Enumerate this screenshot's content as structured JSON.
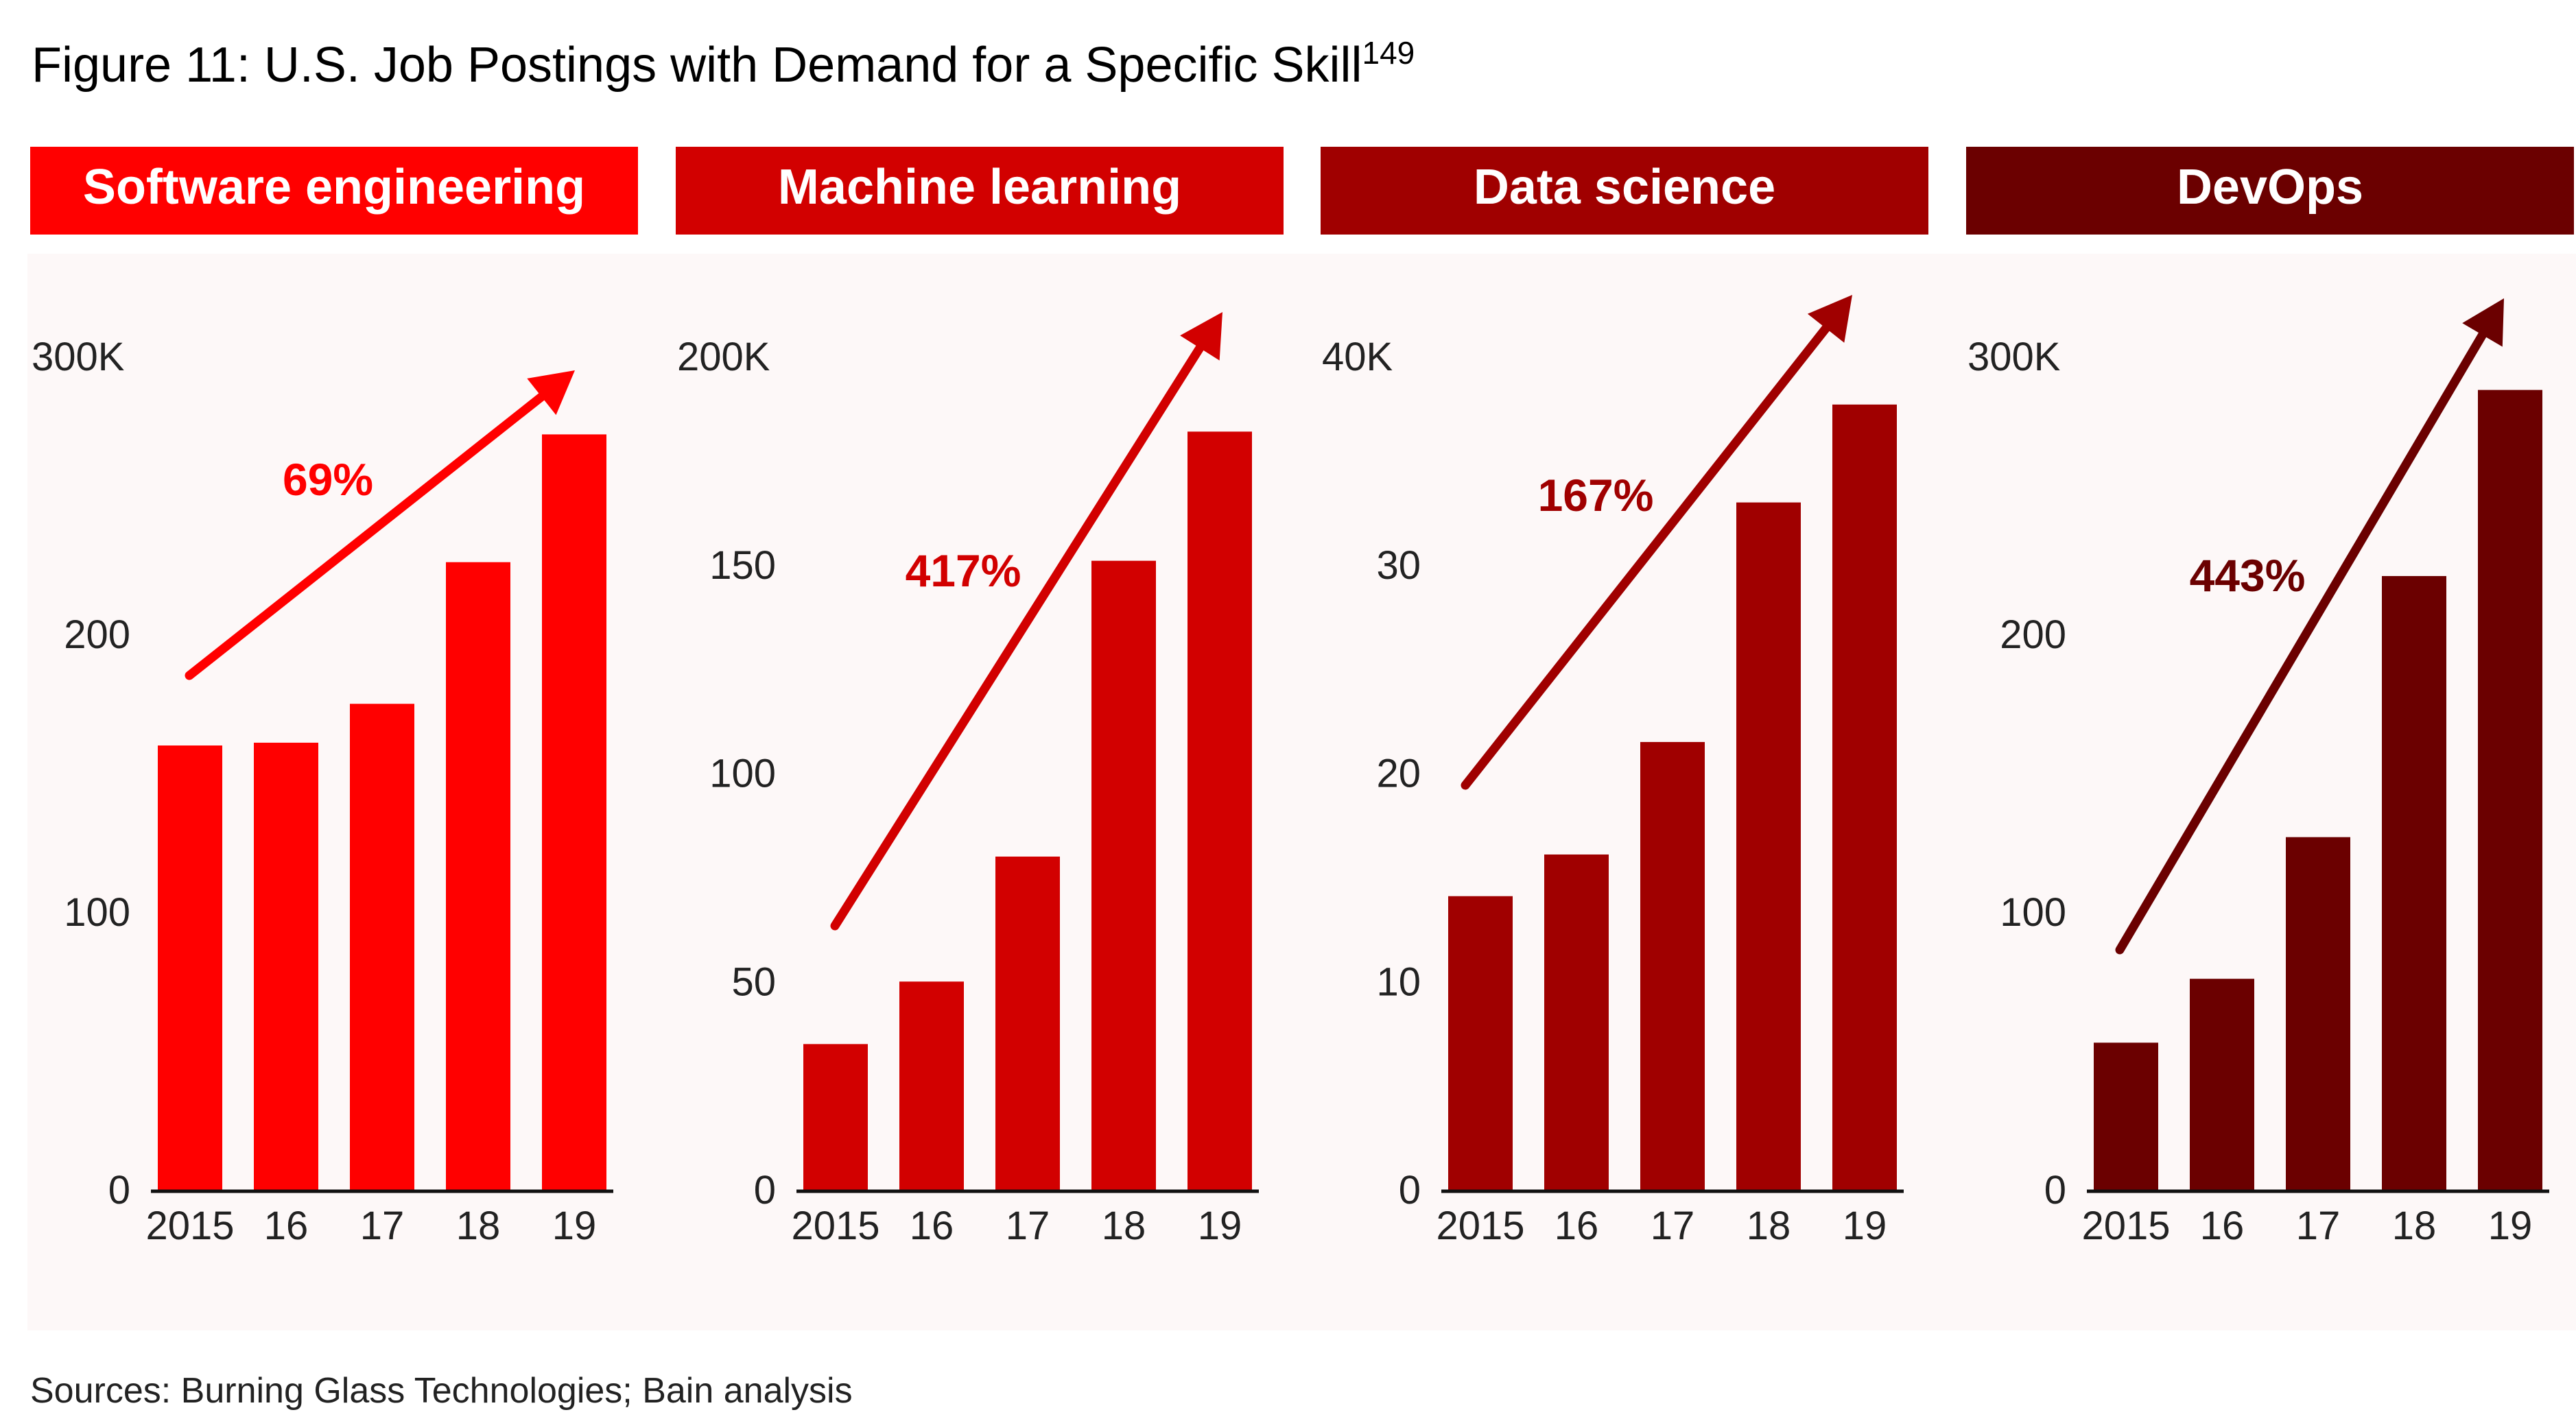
{
  "title": {
    "text": "Figure 11: U.S. Job Postings with Demand for a Specific Skill",
    "footnote": "149"
  },
  "sources": "Sources: Burning Glass Technologies; Bain analysis",
  "chart_data": [
    {
      "type": "bar",
      "title": "Software engineering",
      "color": "#ff0000",
      "categories": [
        "2015",
        "16",
        "17",
        "18",
        "19"
      ],
      "values": [
        160,
        161,
        175,
        226,
        272
      ],
      "ylim": [
        0,
        300
      ],
      "yticks": [
        "0",
        "100",
        "200",
        "300K"
      ],
      "ytick_values": [
        0,
        100,
        200,
        300
      ],
      "annotation": "69%"
    },
    {
      "type": "bar",
      "title": "Machine learning",
      "color": "#d20000",
      "categories": [
        "2015",
        "16",
        "17",
        "18",
        "19"
      ],
      "values": [
        35,
        50,
        80,
        151,
        182
      ],
      "ylim": [
        0,
        200
      ],
      "yticks": [
        "0",
        "50",
        "100",
        "150",
        "200K"
      ],
      "ytick_values": [
        0,
        50,
        100,
        150,
        200
      ],
      "annotation": "417%"
    },
    {
      "type": "bar",
      "title": "Data science",
      "color": "#a00000",
      "categories": [
        "2015",
        "16",
        "17",
        "18",
        "19"
      ],
      "values": [
        14.1,
        16.1,
        21.5,
        33.0,
        37.7
      ],
      "ylim": [
        0,
        40
      ],
      "yticks": [
        "0",
        "10",
        "20",
        "30",
        "40K"
      ],
      "ytick_values": [
        0,
        10,
        20,
        30,
        40
      ],
      "annotation": "167%"
    },
    {
      "type": "bar",
      "title": "DevOps",
      "color": "#6b0000",
      "categories": [
        "2015",
        "16",
        "17",
        "18",
        "19"
      ],
      "values": [
        53,
        76,
        127,
        221,
        288
      ],
      "ylim": [
        0,
        300
      ],
      "yticks": [
        "0",
        "100",
        "200",
        "300K"
      ],
      "ytick_values": [
        0,
        100,
        200,
        300
      ],
      "annotation": "443%"
    }
  ]
}
